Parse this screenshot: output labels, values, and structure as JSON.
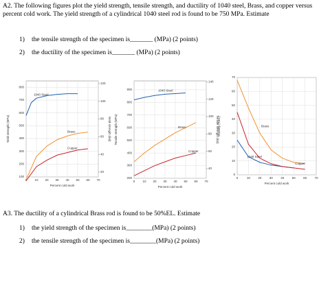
{
  "header": {
    "text": "A2. The following figures plot the yield strength, tensile strength, and ductility of 1040 steel, Brass, and copper versus percent cold work. The yield strength of a cylindrical 1040 steel rod is found to be 750 MPa. Estimate"
  },
  "questions": [
    {
      "number": "1)",
      "text": "the tensile strength of the specimen is_______ (MPa) (2 points)"
    },
    {
      "number": "2)",
      "text": "the ductility of the specimen is_______ (MPa) (2 points)"
    }
  ],
  "part3": {
    "text": "A3. The ductility of a cylindrical Brass rod is found to be 50%EL. Estimate",
    "questions": [
      {
        "number": "1)",
        "text": "the yield strength of the specimen is________(MPa) (2 points)"
      },
      {
        "number": "2)",
        "text": "the tensile strength of the specimen is________(MPa) (2 points)"
      }
    ]
  },
  "chart_data": [
    {
      "type": "line",
      "ylabel": "Yield strength (MPa)",
      "y2label": "Yield strength (ksi)",
      "xlabel": "Percent cold work",
      "xlim": [
        0,
        70
      ],
      "xticks": [
        0,
        10,
        20,
        30,
        40,
        50,
        60,
        70
      ],
      "ylim": [
        100,
        850
      ],
      "yticks": [
        100,
        200,
        300,
        400,
        500,
        600,
        700,
        800
      ],
      "y2lim": [
        14.5,
        123
      ],
      "y2ticks": [
        20,
        40,
        60,
        80,
        100,
        120
      ],
      "grid": true,
      "series": [
        {
          "name": "1040 Steel",
          "color": "#1f5fb0",
          "x": [
            0,
            5,
            10,
            20,
            30,
            40,
            50
          ],
          "values": [
            580,
            680,
            715,
            735,
            745,
            750,
            750
          ]
        },
        {
          "name": "Brass",
          "color": "#f0922e",
          "x": [
            0,
            10,
            20,
            30,
            40,
            50,
            60
          ],
          "values": [
            80,
            260,
            340,
            390,
            420,
            440,
            450
          ]
        },
        {
          "name": "Copper",
          "color": "#c8202a",
          "x": [
            0,
            10,
            20,
            30,
            40,
            50,
            60
          ],
          "values": [
            70,
            180,
            230,
            270,
            290,
            310,
            320
          ]
        }
      ]
    },
    {
      "type": "line",
      "ylabel": "Tensile strength (MPa)",
      "y2label": "Tensile strength (ksi)",
      "xlabel": "Percent cold work",
      "xlim": [
        0,
        70
      ],
      "xticks": [
        0,
        10,
        20,
        30,
        40,
        50,
        60,
        70
      ],
      "ylim": [
        200,
        970
      ],
      "yticks": [
        200,
        300,
        400,
        500,
        600,
        700,
        800,
        900
      ],
      "y2lim": [
        29,
        141
      ],
      "y2ticks": [
        40,
        60,
        80,
        100,
        120,
        140
      ],
      "grid": true,
      "series": [
        {
          "name": "1040 Steel",
          "color": "#1f5fb0",
          "x": [
            0,
            10,
            20,
            30,
            40,
            50
          ],
          "values": [
            820,
            840,
            855,
            865,
            870,
            875
          ]
        },
        {
          "name": "Brass",
          "color": "#f0922e",
          "x": [
            0,
            10,
            20,
            30,
            40,
            50,
            60
          ],
          "values": [
            330,
            400,
            460,
            510,
            560,
            600,
            640
          ]
        },
        {
          "name": "Copper",
          "color": "#c8202a",
          "x": [
            0,
            10,
            20,
            30,
            40,
            50,
            60
          ],
          "values": [
            220,
            260,
            300,
            330,
            360,
            380,
            400
          ]
        }
      ]
    },
    {
      "type": "line",
      "ylabel": "Ductility (%EL)",
      "xlabel": "Percent cold work",
      "xlim": [
        0,
        70
      ],
      "xticks": [
        0,
        10,
        20,
        30,
        40,
        50,
        60,
        70
      ],
      "ylim": [
        0,
        70
      ],
      "yticks": [
        0,
        10,
        20,
        30,
        40,
        50,
        60,
        70
      ],
      "grid": true,
      "series": [
        {
          "name": "Brass",
          "color": "#f0922e",
          "x": [
            0,
            10,
            20,
            30,
            40,
            50,
            60
          ],
          "values": [
            68,
            48,
            30,
            18,
            12,
            9,
            8
          ]
        },
        {
          "name": "1040 Steel",
          "color": "#1f5fb0",
          "x": [
            0,
            10,
            20,
            30,
            40,
            50
          ],
          "values": [
            25,
            13,
            9,
            7,
            6,
            5
          ]
        },
        {
          "name": "Copper",
          "color": "#c8202a",
          "x": [
            0,
            10,
            20,
            30,
            40,
            50,
            60
          ],
          "values": [
            45,
            22,
            12,
            8,
            6,
            5,
            4
          ]
        }
      ]
    }
  ]
}
